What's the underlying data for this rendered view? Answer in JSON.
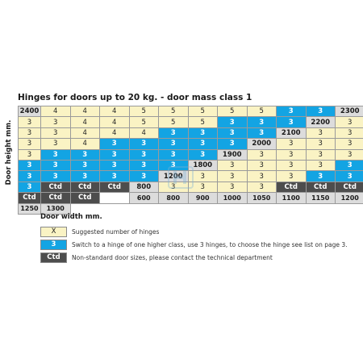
{
  "title": "Hinges for doors up to 20 kg. - door mass class 1",
  "y_axis_label": "Door height mm.",
  "x_axis_label": "Door width mm.",
  "widths": [
    "600",
    "800",
    "900",
    "1000",
    "1050",
    "1100",
    "1150",
    "1200",
    "1250",
    "1300"
  ],
  "column_headers": [
    "600",
    "800",
    "900",
    "1000",
    "1050",
    "1100",
    "1150",
    "1200",
    "1250",
    "1300"
  ],
  "heights": [
    "2400",
    "2300",
    "2200",
    "2100",
    "2000",
    "1900",
    "1800",
    "1200",
    "800"
  ],
  "rows": [
    {
      "height": "2400",
      "cells": [
        "4",
        "4",
        "4",
        "5",
        "5",
        "5",
        "5",
        "5",
        "3",
        "3"
      ],
      "types": [
        "X",
        "X",
        "X",
        "X",
        "X",
        "X",
        "X",
        "X",
        "B",
        "B"
      ]
    },
    {
      "height": "2300",
      "cells": [
        "3",
        "3",
        "4",
        "4",
        "5",
        "5",
        "5",
        "3",
        "3",
        "3"
      ],
      "types": [
        "X",
        "X",
        "X",
        "X",
        "X",
        "X",
        "X",
        "B",
        "B",
        "B"
      ]
    },
    {
      "height": "2200",
      "cells": [
        "3",
        "3",
        "3",
        "4",
        "4",
        "4",
        "3",
        "3",
        "3",
        "3"
      ],
      "types": [
        "X",
        "X",
        "X",
        "X",
        "X",
        "X",
        "B",
        "B",
        "B",
        "B"
      ]
    },
    {
      "height": "2100",
      "cells": [
        "3",
        "3",
        "3",
        "3",
        "4",
        "3",
        "3",
        "3",
        "3",
        "3"
      ],
      "types": [
        "X",
        "X",
        "X",
        "X",
        "X",
        "B",
        "B",
        "B",
        "B",
        "B"
      ]
    },
    {
      "height": "2000",
      "cells": [
        "3",
        "3",
        "3",
        "3",
        "3",
        "3",
        "3",
        "3",
        "3",
        "3"
      ],
      "types": [
        "X",
        "X",
        "X",
        "X",
        "B",
        "B",
        "B",
        "B",
        "B",
        "B"
      ]
    },
    {
      "height": "1900",
      "cells": [
        "3",
        "3",
        "3",
        "3",
        "3",
        "3",
        "3",
        "3",
        "3",
        "3"
      ],
      "types": [
        "X",
        "X",
        "X",
        "X",
        "B",
        "B",
        "B",
        "B",
        "B",
        "B"
      ]
    },
    {
      "height": "1800",
      "cells": [
        "3",
        "3",
        "3",
        "3",
        "3",
        "3",
        "3",
        "3",
        "3",
        "3"
      ],
      "types": [
        "X",
        "X",
        "X",
        "X",
        "B",
        "B",
        "B",
        "B",
        "B",
        "B"
      ]
    },
    {
      "height": "1200",
      "cells": [
        "3",
        "3",
        "3",
        "3",
        "3",
        "3",
        "3",
        "Ctd",
        "Ctd",
        "Ctd"
      ],
      "types": [
        "X",
        "X",
        "X",
        "X",
        "B",
        "B",
        "B",
        "C",
        "C",
        "C"
      ]
    },
    {
      "height": "800",
      "cells": [
        "3",
        "3",
        "3",
        "3",
        "Ctd",
        "Ctd",
        "Ctd",
        "Ctd",
        "Ctd",
        "Ctd"
      ],
      "types": [
        "X",
        "X",
        "X",
        "X",
        "C",
        "C",
        "C",
        "C",
        "C",
        "C"
      ]
    }
  ],
  "legend": [
    {
      "symbol": "X",
      "type": "X",
      "text": "Suggested number of hinges"
    },
    {
      "symbol": "3",
      "type": "B",
      "text": "Switch to a hinge of one higher class, use 3 hinges, to choose the hinge see list on page 3."
    },
    {
      "symbol": "Ctd",
      "type": "C",
      "text": "Non-standard door sizes, please contact the technical department"
    }
  ],
  "colors": {
    "suggested": "#faf3c4",
    "higher_class": "#13a4e3",
    "non_standard": "#4d4d4d",
    "header": "#dcdcdc"
  }
}
